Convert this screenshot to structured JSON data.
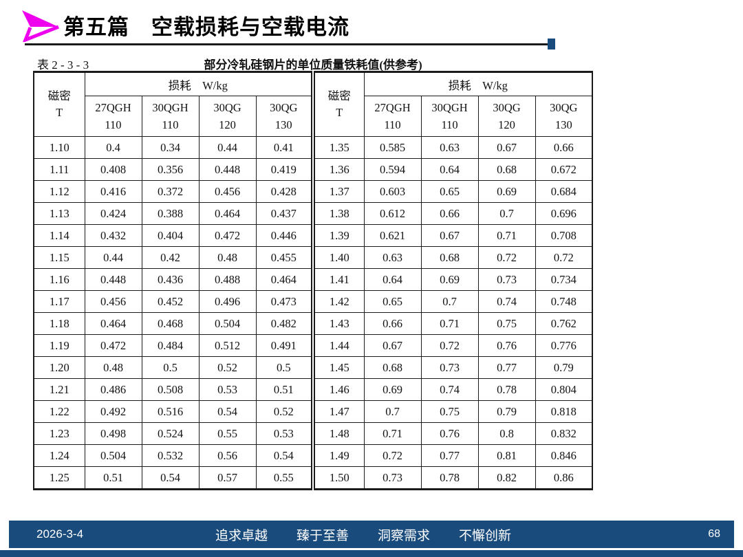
{
  "header": {
    "title": "第五篇　空载损耗与空载电流"
  },
  "table": {
    "label": "表 2 - 3 - 3",
    "caption": "部分冷轧硅钢片的单位质量铁耗值(供参考)",
    "loss_header": "损耗　W/kg",
    "row_header": {
      "line1": "磁密",
      "line2": "T"
    },
    "columns": [
      {
        "line1": "27QGH",
        "line2": "110"
      },
      {
        "line1": "30QGH",
        "line2": "110"
      },
      {
        "line1": "30QG",
        "line2": "120"
      },
      {
        "line1": "30QG",
        "line2": "130"
      }
    ],
    "left_rows": [
      [
        "1.10",
        "0.4",
        "0.34",
        "0.44",
        "0.41"
      ],
      [
        "1.11",
        "0.408",
        "0.356",
        "0.448",
        "0.419"
      ],
      [
        "1.12",
        "0.416",
        "0.372",
        "0.456",
        "0.428"
      ],
      [
        "1.13",
        "0.424",
        "0.388",
        "0.464",
        "0.437"
      ],
      [
        "1.14",
        "0.432",
        "0.404",
        "0.472",
        "0.446"
      ],
      [
        "1.15",
        "0.44",
        "0.42",
        "0.48",
        "0.455"
      ],
      [
        "1.16",
        "0.448",
        "0.436",
        "0.488",
        "0.464"
      ],
      [
        "1.17",
        "0.456",
        "0.452",
        "0.496",
        "0.473"
      ],
      [
        "1.18",
        "0.464",
        "0.468",
        "0.504",
        "0.482"
      ],
      [
        "1.19",
        "0.472",
        "0.484",
        "0.512",
        "0.491"
      ],
      [
        "1.20",
        "0.48",
        "0.5",
        "0.52",
        "0.5"
      ],
      [
        "1.21",
        "0.486",
        "0.508",
        "0.53",
        "0.51"
      ],
      [
        "1.22",
        "0.492",
        "0.516",
        "0.54",
        "0.52"
      ],
      [
        "1.23",
        "0.498",
        "0.524",
        "0.55",
        "0.53"
      ],
      [
        "1.24",
        "0.504",
        "0.532",
        "0.56",
        "0.54"
      ],
      [
        "1.25",
        "0.51",
        "0.54",
        "0.57",
        "0.55"
      ]
    ],
    "right_rows": [
      [
        "1.35",
        "0.585",
        "0.63",
        "0.67",
        "0.66"
      ],
      [
        "1.36",
        "0.594",
        "0.64",
        "0.68",
        "0.672"
      ],
      [
        "1.37",
        "0.603",
        "0.65",
        "0.69",
        "0.684"
      ],
      [
        "1.38",
        "0.612",
        "0.66",
        "0.7",
        "0.696"
      ],
      [
        "1.39",
        "0.621",
        "0.67",
        "0.71",
        "0.708"
      ],
      [
        "1.40",
        "0.63",
        "0.68",
        "0.72",
        "0.72"
      ],
      [
        "1.41",
        "0.64",
        "0.69",
        "0.73",
        "0.734"
      ],
      [
        "1.42",
        "0.65",
        "0.7",
        "0.74",
        "0.748"
      ],
      [
        "1.43",
        "0.66",
        "0.71",
        "0.75",
        "0.762"
      ],
      [
        "1.44",
        "0.67",
        "0.72",
        "0.76",
        "0.776"
      ],
      [
        "1.45",
        "0.68",
        "0.73",
        "0.77",
        "0.79"
      ],
      [
        "1.46",
        "0.69",
        "0.74",
        "0.78",
        "0.804"
      ],
      [
        "1.47",
        "0.7",
        "0.75",
        "0.79",
        "0.818"
      ],
      [
        "1.48",
        "0.71",
        "0.76",
        "0.8",
        "0.832"
      ],
      [
        "1.49",
        "0.72",
        "0.77",
        "0.81",
        "0.846"
      ],
      [
        "1.50",
        "0.73",
        "0.78",
        "0.82",
        "0.86"
      ]
    ]
  },
  "footer": {
    "date": "2026-3-4",
    "slogans": [
      "追求卓越",
      "臻于至善",
      "洞察需求",
      "不懈创新"
    ],
    "page": "68"
  },
  "colors": {
    "accent_navy": "#1A4B7D",
    "arrow_magenta": "#EE00EE",
    "table_line": "#1A1A1A"
  }
}
